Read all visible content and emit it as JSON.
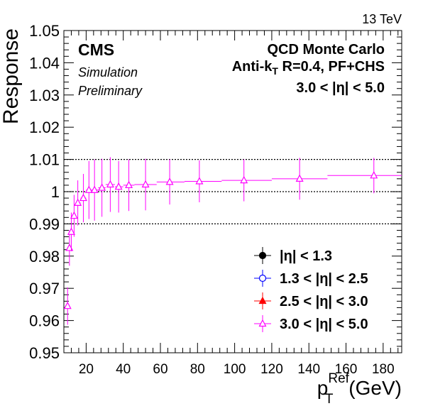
{
  "chart_data": {
    "type": "scatter",
    "energy_label": "13 TeV",
    "experiment": "CMS",
    "status_lines": [
      "Simulation",
      "Preliminary"
    ],
    "info_lines": [
      "QCD Monte Carlo",
      "3.0 < |η| < 5.0"
    ],
    "algo_label": {
      "prefix": "Anti-k",
      "sub": "T",
      "suffix": " R=0.4, PF+CHS"
    },
    "ylabel": "Response",
    "xlabel": {
      "main": "p",
      "sub": "T",
      "sup": "Ref",
      "unit": " (GeV)"
    },
    "xlim": [
      8,
      190
    ],
    "ylim": [
      0.95,
      1.05
    ],
    "xticks": [
      20,
      40,
      60,
      80,
      100,
      120,
      140,
      160,
      180
    ],
    "yticks": [
      "0.95",
      "0.96",
      "0.97",
      "0.98",
      "0.99",
      "1",
      "1.01",
      "1.02",
      "1.03",
      "1.04",
      "1.05"
    ],
    "reference_lines": [
      0.99,
      1.0,
      1.01
    ],
    "legend_position": "bottom-right",
    "series": [
      {
        "name": "|η| < 1.3",
        "color": "#000000",
        "marker": "filled-circle",
        "points": []
      },
      {
        "name": "1.3 < |η| < 2.5",
        "color": "#0000ff",
        "marker": "open-circle",
        "points": []
      },
      {
        "name": "2.5 < |η| < 3.0",
        "color": "#ff0000",
        "marker": "filled-triangle",
        "points": []
      },
      {
        "name": "3.0 < |η| < 5.0",
        "color": "#ff00ff",
        "marker": "open-triangle",
        "points": [
          {
            "x": 10.0,
            "y": 0.9645,
            "xlo": 9.0,
            "xhi": 10.5,
            "yerr": 0.0058
          },
          {
            "x": 11.0,
            "y": 0.9825,
            "xlo": 10.5,
            "xhi": 11.5,
            "yerr": 0.0055
          },
          {
            "x": 12.0,
            "y": 0.9875,
            "xlo": 11.5,
            "xhi": 12.5,
            "yerr": 0.006
          },
          {
            "x": 13.5,
            "y": 0.9925,
            "xlo": 12.5,
            "xhi": 14.5,
            "yerr": 0.0065
          },
          {
            "x": 15.5,
            "y": 0.9965,
            "xlo": 14.5,
            "xhi": 17.0,
            "yerr": 0.007
          },
          {
            "x": 18.5,
            "y": 0.998,
            "xlo": 17.0,
            "xhi": 20.0,
            "yerr": 0.0075
          },
          {
            "x": 21.5,
            "y": 1.0005,
            "xlo": 20.0,
            "xhi": 23.0,
            "yerr": 0.009
          },
          {
            "x": 24.5,
            "y": 1.0005,
            "xlo": 23.0,
            "xhi": 26.5,
            "yerr": 0.0095
          },
          {
            "x": 28.5,
            "y": 1.0012,
            "xlo": 26.5,
            "xhi": 30.5,
            "yerr": 0.009
          },
          {
            "x": 33.0,
            "y": 1.0022,
            "xlo": 30.5,
            "xhi": 35.5,
            "yerr": 0.0085
          },
          {
            "x": 37.5,
            "y": 1.0015,
            "xlo": 35.5,
            "xhi": 40.0,
            "yerr": 0.008
          },
          {
            "x": 43.0,
            "y": 1.002,
            "xlo": 40.0,
            "xhi": 46.0,
            "yerr": 0.008
          },
          {
            "x": 52.0,
            "y": 1.0022,
            "xlo": 46.0,
            "xhi": 58.0,
            "yerr": 0.008
          },
          {
            "x": 65.0,
            "y": 1.003,
            "xlo": 58.0,
            "xhi": 73.0,
            "yerr": 0.007
          },
          {
            "x": 81.0,
            "y": 1.0032,
            "xlo": 73.0,
            "xhi": 93.0,
            "yerr": 0.0065
          },
          {
            "x": 105.0,
            "y": 1.0035,
            "xlo": 93.0,
            "xhi": 120.0,
            "yerr": 0.0065
          },
          {
            "x": 135.0,
            "y": 1.004,
            "xlo": 120.0,
            "xhi": 150.0,
            "yerr": 0.0065
          },
          {
            "x": 175.0,
            "y": 1.005,
            "xlo": 150.0,
            "xhi": 190.0,
            "yerr": 0.0055
          }
        ]
      }
    ]
  }
}
